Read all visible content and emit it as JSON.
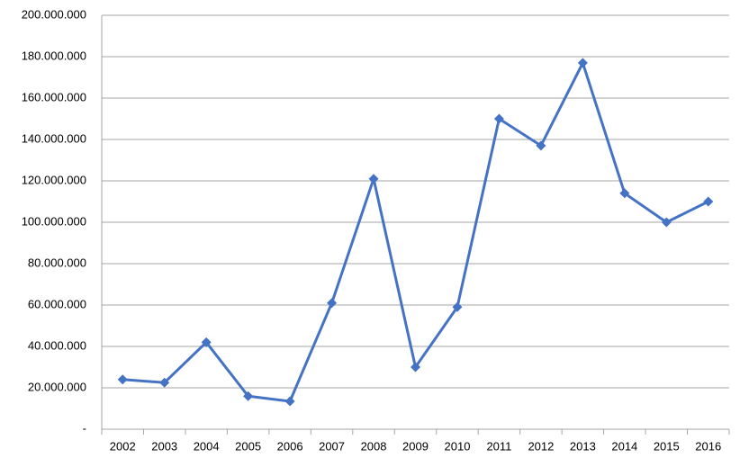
{
  "chart_data": {
    "type": "line",
    "categories": [
      "2002",
      "2003",
      "2004",
      "2005",
      "2006",
      "2007",
      "2008",
      "2009",
      "2010",
      "2011",
      "2012",
      "2013",
      "2014",
      "2015",
      "2016"
    ],
    "series": [
      {
        "name": null,
        "color": "#4472c4",
        "values": [
          24000000,
          22500000,
          42000000,
          16000000,
          13500000,
          61000000,
          121000000,
          30000000,
          59000000,
          150000000,
          137000000,
          177000000,
          114000000,
          100000000,
          110000000
        ]
      }
    ],
    "ylim": [
      0,
      200000000
    ],
    "yticks": [
      {
        "value": 0,
        "label": "-"
      },
      {
        "value": 20000000,
        "label": "20.000.000"
      },
      {
        "value": 40000000,
        "label": "40.000.000"
      },
      {
        "value": 60000000,
        "label": "60.000.000"
      },
      {
        "value": 80000000,
        "label": "80.000.000"
      },
      {
        "value": 100000000,
        "label": "100.000.000"
      },
      {
        "value": 120000000,
        "label": "120.000.000"
      },
      {
        "value": 140000000,
        "label": "140.000.000"
      },
      {
        "value": 160000000,
        "label": "160.000.000"
      },
      {
        "value": 180000000,
        "label": "180.000.000"
      },
      {
        "value": 200000000,
        "label": "200.000.000"
      }
    ],
    "grid": true
  }
}
